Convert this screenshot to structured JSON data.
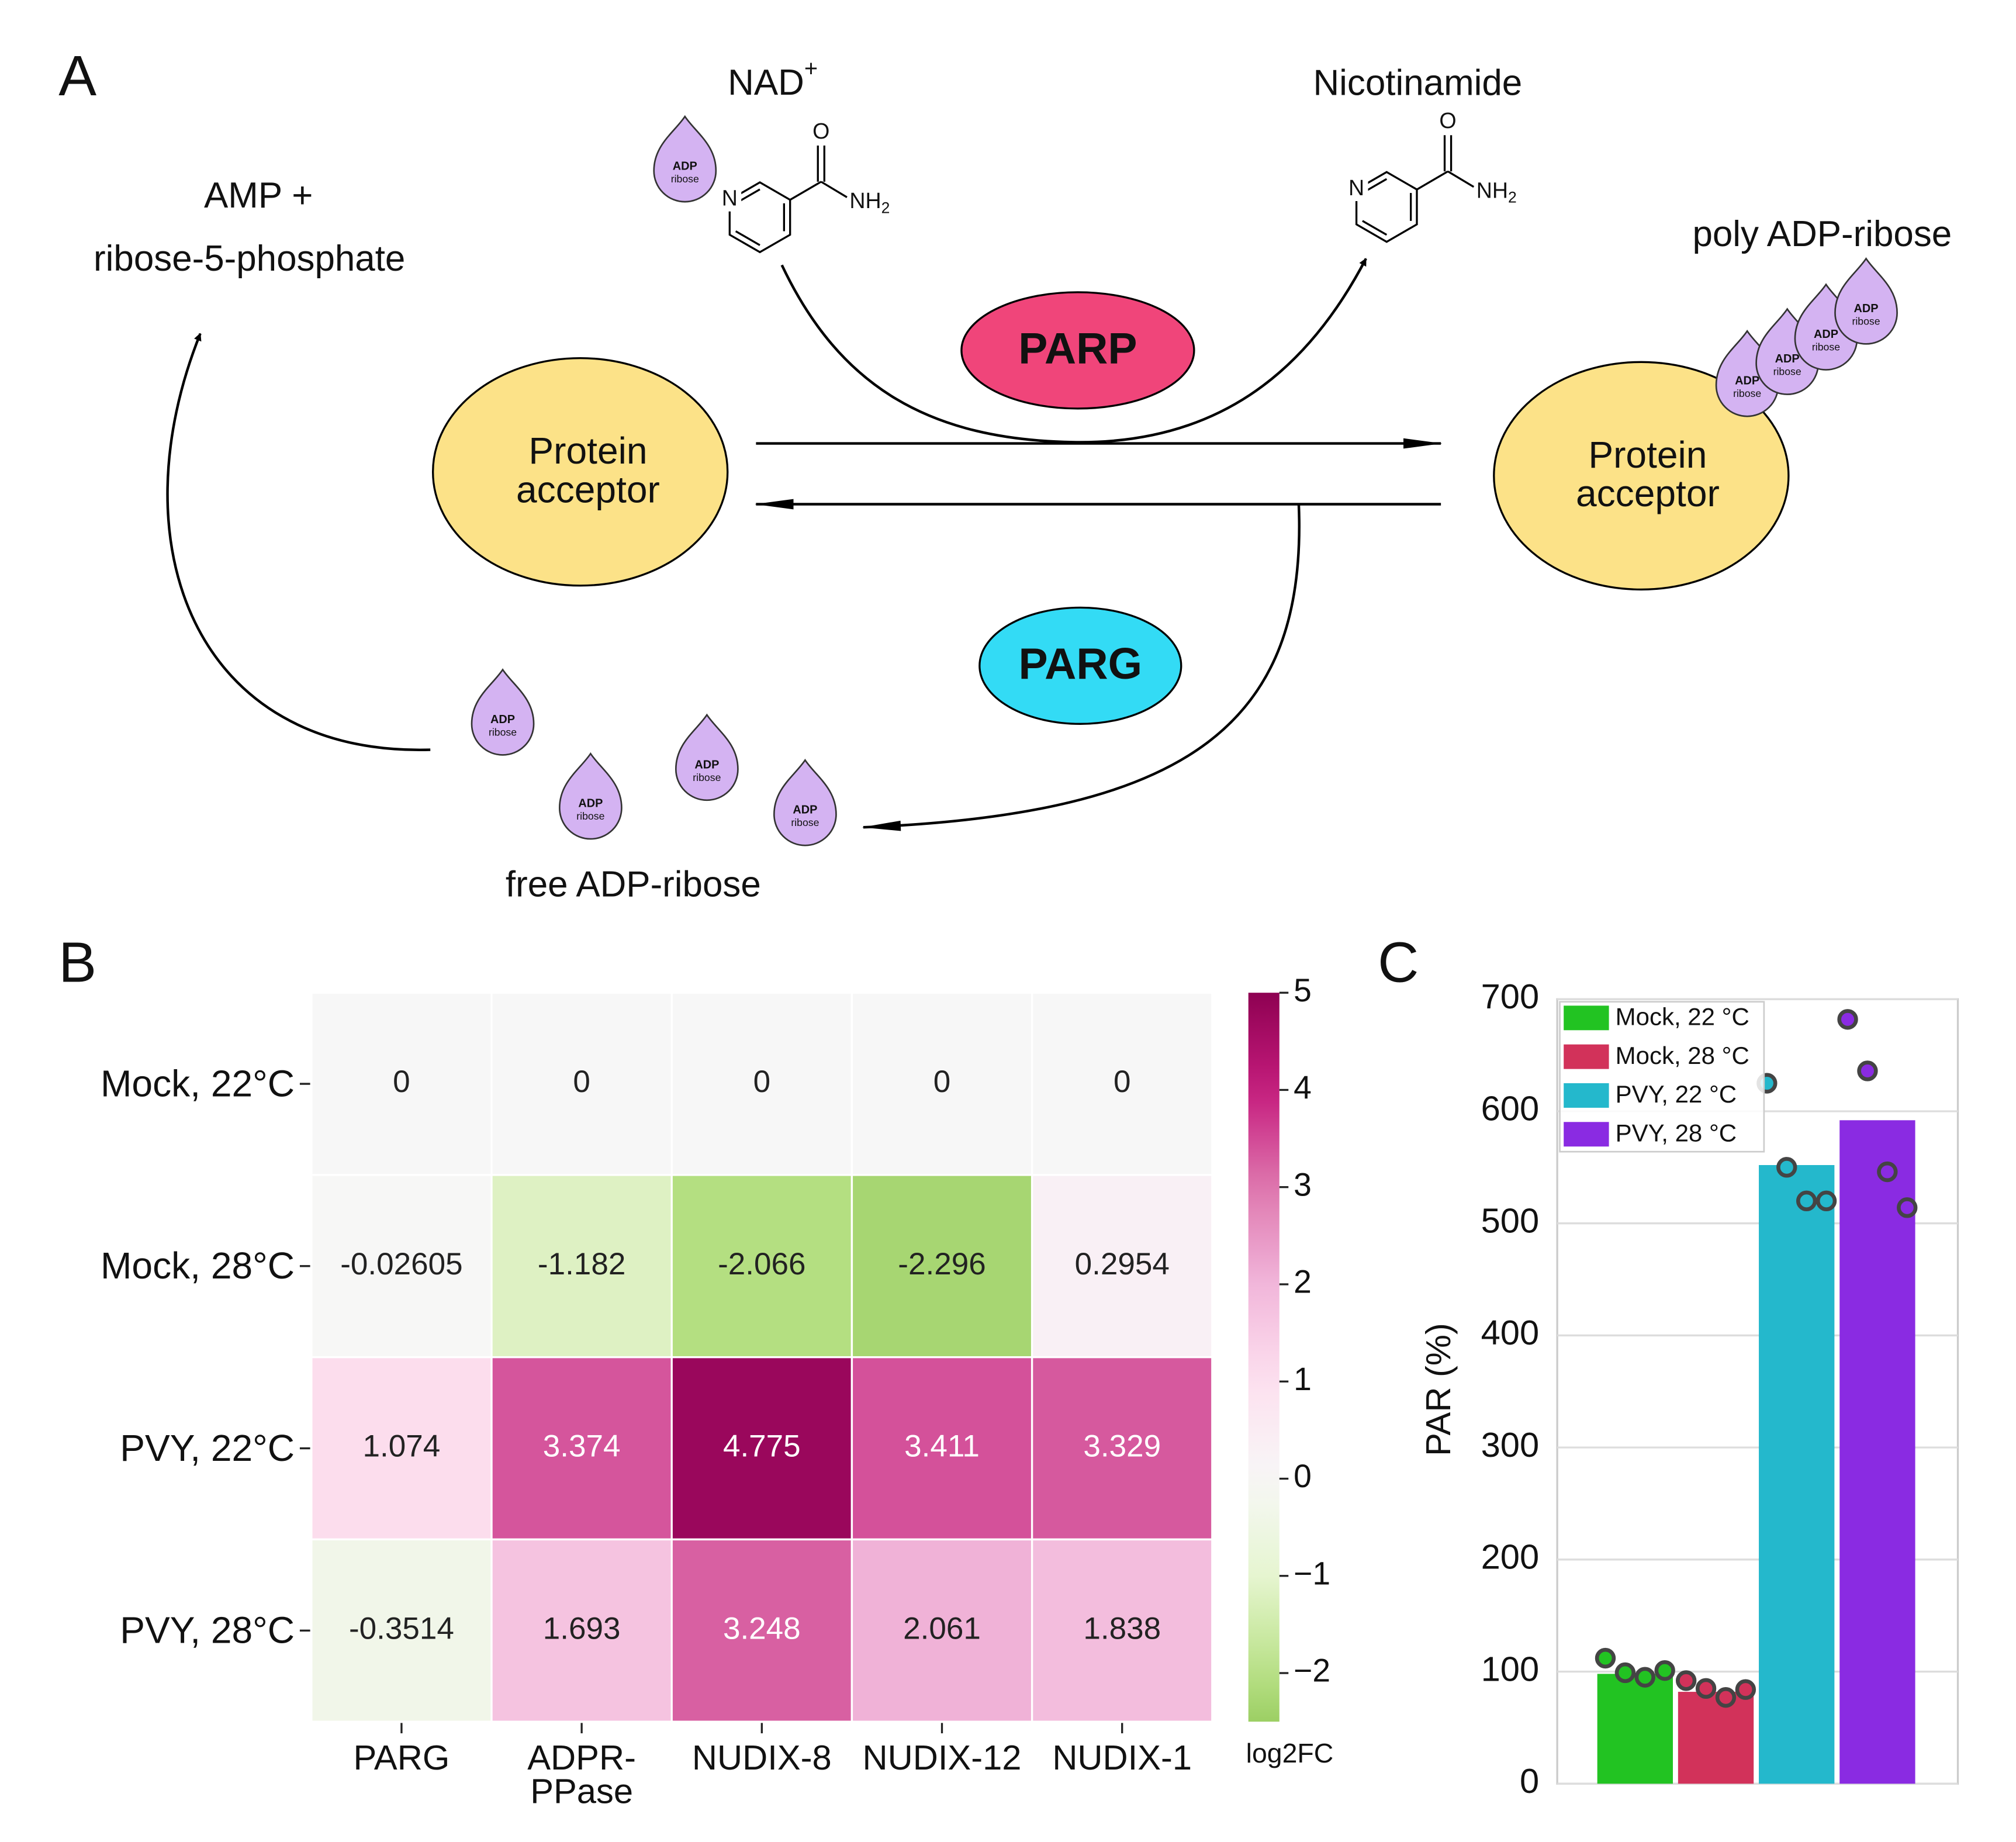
{
  "diagram": {
    "panel_label": "A",
    "nad": "NAD",
    "nad_charge": "+",
    "nicotinamide": "Nicotinamide",
    "amp_line1": "AMP +",
    "amp_line2": "ribose-5-phosphate",
    "poly": "poly ADP-ribose",
    "parp": "PARP",
    "parg": "PARG",
    "protein_left": [
      "Protein",
      "acceptor"
    ],
    "protein_right": [
      "Protein",
      "acceptor"
    ],
    "free": "free ADP-ribose",
    "drop_label": [
      "ADP",
      "ribose"
    ],
    "atoms": {
      "o": "O",
      "n": "N",
      "nh": "NH",
      "sub": "2"
    }
  },
  "chart_data": [
    {
      "type": "heatmap",
      "panel_label": "B",
      "rows": [
        "Mock, 22°C",
        "Mock, 28°C",
        "PVY, 22°C",
        "PVY, 28°C"
      ],
      "columns": [
        [
          "PARG"
        ],
        [
          "ADPR-",
          "PPase"
        ],
        [
          "NUDIX-8"
        ],
        [
          "NUDIX-12"
        ],
        [
          "NUDIX-1"
        ]
      ],
      "values": [
        [
          0,
          0,
          0,
          0,
          0
        ],
        [
          -0.02605,
          -1.182,
          -2.066,
          -2.296,
          0.2954
        ],
        [
          1.074,
          3.374,
          4.775,
          3.411,
          3.329
        ],
        [
          -0.3514,
          1.693,
          3.248,
          2.061,
          1.838
        ]
      ],
      "colormap": [
        "#276419",
        "#4d9221",
        "#7fbc41",
        "#b8e186",
        "#e6f5d0",
        "#f7f7f7",
        "#fde0ef",
        "#f1b6da",
        "#de77ae",
        "#c51b7d",
        "#8e0152"
      ],
      "clim": [
        -5,
        5
      ],
      "zlim": [
        -2.5,
        5
      ],
      "zticks": [
        5,
        4,
        3,
        2,
        1,
        0,
        {
          "value": -1,
          "label": "−1"
        },
        {
          "value": -2,
          "label": "−2"
        }
      ],
      "colorbar_label": "log2FC"
    },
    {
      "type": "bar",
      "panel_label": "C",
      "ylabel": "PAR (%)",
      "ylim": [
        0,
        700
      ],
      "yticks": [
        0,
        100,
        200,
        300,
        400,
        500,
        600,
        700
      ],
      "grid": true,
      "legend": "upper left",
      "series": [
        {
          "name": "Mock, 22 °C",
          "color": "#22c322",
          "values": [
            98
          ],
          "points": [
            112,
            99,
            95,
            101
          ]
        },
        {
          "name": "Mock, 28 °C",
          "color": "#d2325a",
          "values": [
            82
          ],
          "points": [
            92,
            85,
            77,
            84
          ]
        },
        {
          "name": "PVY, 22 °C",
          "color": "#24b8cc",
          "values": [
            552
          ],
          "points": [
            625,
            550,
            520,
            520
          ]
        },
        {
          "name": "PVY, 28 °C",
          "color": "#8a2be2",
          "values": [
            592
          ],
          "points": [
            682,
            636,
            546,
            514
          ]
        }
      ]
    }
  ]
}
